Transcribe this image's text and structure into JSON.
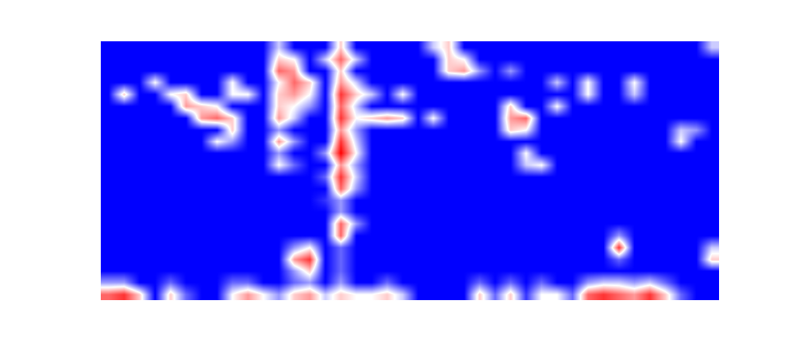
{
  "chart_data": {
    "type": "heatmap",
    "tick_labels": false,
    "zlim": [
      0,
      10
    ],
    "z": [
      [
        8,
        9,
        6,
        0,
        6,
        2,
        0,
        0,
        5,
        7,
        5,
        3,
        6,
        7,
        4,
        6,
        5,
        5,
        6,
        4,
        0,
        0,
        0,
        0,
        6,
        2,
        6,
        1,
        5,
        5,
        2,
        8,
        9,
        8,
        7,
        9,
        6,
        2,
        0,
        0
      ],
      [
        3,
        3,
        0,
        0,
        2,
        0,
        0,
        0,
        2,
        2,
        0,
        0,
        2,
        3,
        0,
        3,
        0,
        0,
        2,
        0,
        0,
        0,
        0,
        0,
        2,
        0,
        2,
        0,
        2,
        0,
        0,
        3,
        4,
        4,
        3,
        4,
        2,
        0,
        0,
        0
      ],
      [
        0,
        0,
        0,
        0,
        0,
        0,
        0,
        0,
        0,
        0,
        0,
        0,
        3,
        6,
        0,
        2,
        0,
        0,
        0,
        0,
        0,
        0,
        0,
        0,
        0,
        0,
        0,
        0,
        0,
        0,
        0,
        0,
        0,
        0,
        0,
        0,
        0,
        0,
        0,
        0
      ],
      [
        0,
        0,
        0,
        0,
        0,
        0,
        0,
        0,
        0,
        0,
        0,
        0,
        7,
        9,
        0,
        2,
        0,
        0,
        0,
        0,
        0,
        0,
        0,
        0,
        0,
        0,
        0,
        0,
        0,
        0,
        0,
        0,
        0,
        2,
        0,
        0,
        0,
        0,
        0,
        6
      ],
      [
        0,
        0,
        0,
        0,
        0,
        0,
        0,
        0,
        0,
        0,
        0,
        0,
        3,
        5,
        0,
        2,
        0,
        0,
        0,
        0,
        0,
        0,
        0,
        0,
        0,
        0,
        0,
        0,
        0,
        0,
        0,
        0,
        0,
        9,
        0,
        0,
        0,
        0,
        0,
        4
      ],
      [
        0,
        0,
        0,
        0,
        0,
        0,
        0,
        0,
        0,
        0,
        0,
        0,
        0,
        0,
        0,
        8,
        0,
        0,
        0,
        0,
        0,
        0,
        0,
        0,
        0,
        0,
        0,
        0,
        0,
        0,
        0,
        0,
        0,
        3,
        0,
        0,
        0,
        0,
        0,
        0
      ],
      [
        0,
        0,
        0,
        0,
        0,
        0,
        0,
        0,
        0,
        0,
        0,
        0,
        0,
        0,
        0,
        8,
        3,
        0,
        0,
        0,
        0,
        0,
        0,
        0,
        0,
        0,
        0,
        0,
        0,
        0,
        0,
        0,
        0,
        0,
        0,
        0,
        0,
        0,
        0,
        0
      ],
      [
        0,
        0,
        0,
        0,
        0,
        0,
        0,
        0,
        0,
        0,
        0,
        0,
        0,
        0,
        0,
        3,
        0,
        0,
        0,
        0,
        0,
        0,
        0,
        0,
        0,
        0,
        0,
        0,
        0,
        0,
        0,
        0,
        0,
        0,
        0,
        0,
        0,
        0,
        0,
        0
      ],
      [
        0,
        0,
        0,
        0,
        0,
        0,
        0,
        0,
        0,
        0,
        0,
        0,
        0,
        0,
        1,
        3,
        0,
        0,
        0,
        0,
        0,
        0,
        0,
        0,
        0,
        0,
        0,
        0,
        0,
        0,
        0,
        0,
        0,
        0,
        0,
        0,
        0,
        0,
        0,
        0
      ],
      [
        0,
        0,
        0,
        0,
        0,
        0,
        0,
        0,
        0,
        0,
        0,
        0,
        0,
        0,
        0,
        8,
        3,
        0,
        0,
        0,
        0,
        0,
        0,
        0,
        0,
        0,
        0,
        0,
        0,
        0,
        0,
        0,
        0,
        0,
        0,
        0,
        0,
        0,
        0,
        0
      ],
      [
        0,
        0,
        0,
        0,
        0,
        0,
        0,
        0,
        0,
        0,
        0,
        0,
        0,
        0,
        2,
        9,
        4,
        0,
        0,
        0,
        0,
        0,
        0,
        0,
        0,
        0,
        0,
        0,
        0,
        0,
        0,
        0,
        0,
        0,
        0,
        0,
        0,
        0,
        0,
        0
      ],
      [
        0,
        0,
        0,
        0,
        0,
        0,
        0,
        0,
        0,
        0,
        0,
        5,
        2,
        0,
        0,
        7,
        3,
        0,
        0,
        0,
        0,
        0,
        0,
        0,
        0,
        0,
        0,
        4,
        5,
        0,
        0,
        0,
        0,
        0,
        0,
        0,
        0,
        0,
        0,
        0
      ],
      [
        0,
        0,
        0,
        0,
        0,
        0,
        0,
        0,
        0,
        0,
        0,
        3,
        0,
        0,
        3,
        10,
        5,
        0,
        0,
        0,
        0,
        0,
        0,
        0,
        0,
        0,
        0,
        5,
        0,
        0,
        0,
        0,
        0,
        0,
        0,
        0,
        0,
        0,
        0,
        0
      ],
      [
        0,
        0,
        0,
        0,
        0,
        0,
        0,
        5,
        3,
        0,
        0,
        7,
        3,
        0,
        0,
        9,
        4,
        0,
        0,
        0,
        0,
        0,
        0,
        0,
        0,
        0,
        0,
        0,
        0,
        0,
        0,
        0,
        0,
        0,
        0,
        0,
        0,
        5,
        0,
        0
      ],
      [
        0,
        0,
        0,
        0,
        0,
        0,
        0,
        0,
        6,
        0,
        0,
        3,
        0,
        0,
        0,
        7,
        3,
        0,
        0,
        0,
        0,
        0,
        0,
        0,
        0,
        0,
        6,
        5,
        0,
        0,
        0,
        0,
        0,
        0,
        0,
        0,
        0,
        4,
        3,
        0
      ],
      [
        0,
        0,
        0,
        0,
        0,
        0,
        7,
        8,
        6,
        0,
        0,
        7,
        4,
        0,
        0,
        9,
        5,
        6,
        7,
        6,
        0,
        5,
        0,
        0,
        0,
        0,
        7,
        8,
        0,
        0,
        0,
        0,
        0,
        0,
        0,
        0,
        0,
        0,
        0,
        0
      ],
      [
        0,
        0,
        0,
        0,
        0,
        7,
        6,
        5,
        0,
        0,
        0,
        6,
        5,
        3,
        0,
        8,
        4,
        0,
        0,
        0,
        0,
        0,
        0,
        0,
        0,
        0,
        6,
        0,
        0,
        5,
        0,
        0,
        0,
        0,
        0,
        0,
        0,
        0,
        0,
        0
      ],
      [
        0,
        6,
        0,
        0,
        5,
        6,
        0,
        0,
        5,
        5,
        0,
        6,
        7,
        5,
        0,
        9,
        6,
        4,
        0,
        5,
        0,
        0,
        0,
        0,
        0,
        0,
        0,
        0,
        0,
        0,
        0,
        5,
        0,
        0,
        4,
        0,
        0,
        0,
        0,
        0
      ],
      [
        0,
        0,
        0,
        5,
        0,
        0,
        0,
        0,
        5,
        0,
        0,
        5,
        8,
        6,
        0,
        7,
        4,
        0,
        0,
        0,
        0,
        0,
        0,
        0,
        0,
        0,
        0,
        0,
        0,
        4,
        0,
        5,
        0,
        0,
        5,
        0,
        0,
        0,
        0,
        0
      ],
      [
        0,
        0,
        0,
        0,
        0,
        0,
        0,
        0,
        0,
        0,
        0,
        8,
        7,
        0,
        0,
        6,
        0,
        0,
        0,
        0,
        0,
        0,
        6,
        7,
        3,
        0,
        3,
        0,
        0,
        0,
        0,
        0,
        0,
        0,
        0,
        0,
        0,
        0,
        0,
        0
      ],
      [
        0,
        0,
        0,
        0,
        0,
        0,
        0,
        0,
        0,
        0,
        0,
        6,
        5,
        0,
        4,
        8,
        4,
        0,
        0,
        0,
        0,
        0,
        6,
        5,
        0,
        0,
        0,
        0,
        0,
        0,
        0,
        0,
        0,
        0,
        0,
        0,
        0,
        0,
        0,
        0
      ],
      [
        0,
        0,
        0,
        0,
        0,
        0,
        0,
        0,
        0,
        0,
        0,
        4,
        0,
        0,
        0,
        6,
        0,
        0,
        0,
        0,
        0,
        4,
        6,
        0,
        0,
        0,
        0,
        0,
        0,
        0,
        0,
        0,
        0,
        0,
        0,
        0,
        0,
        0,
        0,
        4
      ]
    ]
  }
}
